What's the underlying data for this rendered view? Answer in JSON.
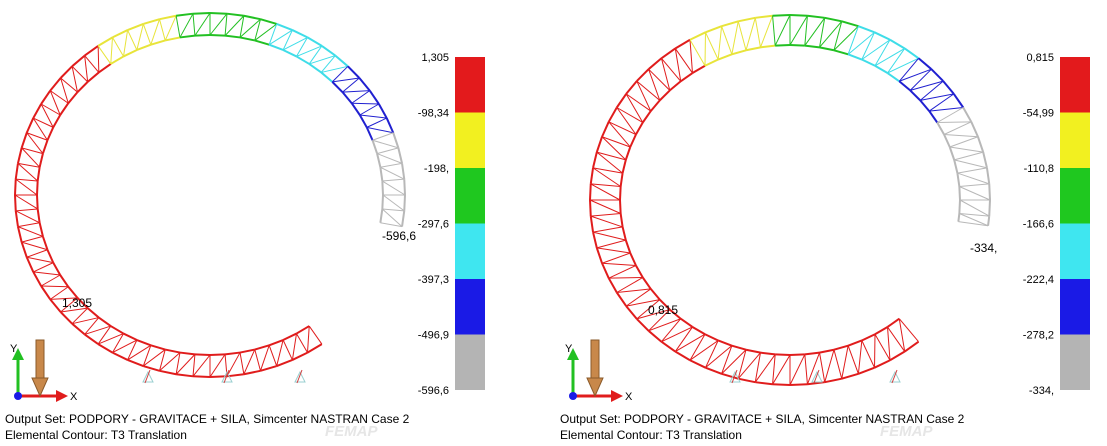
{
  "panels": [
    {
      "legend_labels": [
        "1,305",
        "-98,34",
        "-198,",
        "-297,6",
        "-397,3",
        "-496,9",
        "-596,6"
      ],
      "max_label": "1,305",
      "min_label": "-596,6",
      "axis_x": "X",
      "axis_y": "Y",
      "output_set": "Output Set: PODPORY - GRAVITACE + SILA, Simcenter NASTRAN Case 2",
      "contour": "Elemental Contour: T3 Translation",
      "watermark": "FEMAP"
    },
    {
      "legend_labels": [
        "0,815",
        "-54,99",
        "-110,8",
        "-166,6",
        "-222,4",
        "-278,2",
        "-334,"
      ],
      "max_label": "0,815",
      "min_label": "-334,",
      "axis_x": "X",
      "axis_y": "Y",
      "output_set": "Output Set: PODPORY - GRAVITACE + SILA, Simcenter NASTRAN Case 2",
      "contour": "Elemental Contour: T3 Translation",
      "watermark": "FEMAP"
    }
  ]
}
